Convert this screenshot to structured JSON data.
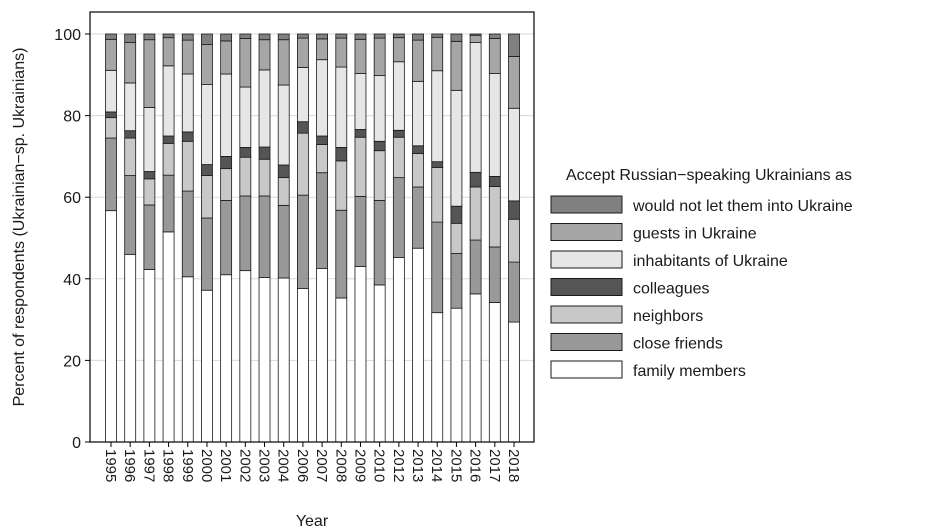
{
  "chart_data": {
    "type": "bar",
    "stacked": true,
    "xlabel": "Year",
    "ylabel": "Percent of respondents (Ukrainian−sp. Ukrainians)",
    "ylim": [
      0,
      100
    ],
    "yticks": [
      0,
      20,
      40,
      60,
      80,
      100
    ],
    "grid": true,
    "legend_title": "Accept Russian−speaking Ukrainians as",
    "legend_position": "right",
    "categories": [
      "1995",
      "1996",
      "1997",
      "1998",
      "1999",
      "2000",
      "2001",
      "2002",
      "2003",
      "2004",
      "2006",
      "2007",
      "2008",
      "2009",
      "2010",
      "2012",
      "2013",
      "2014",
      "2015",
      "2016",
      "2017",
      "2018"
    ],
    "series": [
      {
        "name": "family members",
        "color": "#ffffff",
        "values": [
          56.7,
          46.0,
          42.3,
          51.5,
          40.5,
          37.2,
          41.0,
          42.0,
          40.3,
          40.2,
          37.6,
          42.5,
          35.3,
          43.0,
          38.5,
          45.2,
          47.5,
          31.7,
          32.8,
          36.3,
          34.2,
          29.4
        ]
      },
      {
        "name": "close friends",
        "color": "#999999",
        "values": [
          17.8,
          19.3,
          15.8,
          13.9,
          21.0,
          17.7,
          18.2,
          18.3,
          20.0,
          17.8,
          22.9,
          23.5,
          21.5,
          17.2,
          20.7,
          19.6,
          15.0,
          22.2,
          13.4,
          13.2,
          13.6,
          14.7
        ]
      },
      {
        "name": "neighbors",
        "color": "#c8c8c8",
        "values": [
          5.0,
          9.2,
          6.4,
          7.8,
          12.2,
          10.4,
          7.8,
          9.5,
          9.0,
          6.8,
          15.2,
          6.9,
          12.1,
          14.5,
          12.2,
          9.9,
          8.2,
          13.4,
          7.4,
          13.0,
          14.8,
          10.5
        ]
      },
      {
        "name": "colleagues",
        "color": "#555555",
        "values": [
          1.4,
          1.8,
          1.8,
          1.8,
          2.3,
          2.7,
          3.0,
          2.4,
          3.0,
          3.1,
          2.8,
          2.1,
          3.3,
          1.9,
          2.3,
          1.7,
          1.9,
          1.4,
          4.2,
          3.6,
          2.5,
          4.5
        ]
      },
      {
        "name": "inhabitants of Ukraine",
        "color": "#e6e6e6",
        "values": [
          10.2,
          11.7,
          15.7,
          17.2,
          14.2,
          19.6,
          20.2,
          14.8,
          18.9,
          19.6,
          13.3,
          18.7,
          19.7,
          13.7,
          16.1,
          16.8,
          15.8,
          22.3,
          28.4,
          31.8,
          25.2,
          22.7
        ]
      },
      {
        "name": "guests in Ukraine",
        "color": "#a6a6a6",
        "values": [
          7.6,
          9.9,
          16.6,
          6.9,
          8.3,
          9.8,
          8.1,
          11.9,
          7.4,
          11.1,
          7.2,
          5.1,
          7.1,
          8.4,
          9.2,
          5.9,
          10.1,
          8.2,
          12.0,
          1.8,
          8.6,
          12.7
        ]
      },
      {
        "name": "would not let them into Ukraine",
        "color": "#808080",
        "values": [
          1.3,
          2.1,
          1.4,
          0.9,
          1.5,
          2.6,
          1.7,
          1.1,
          1.4,
          1.4,
          1.0,
          1.2,
          1.0,
          1.3,
          1.0,
          0.9,
          1.5,
          0.8,
          1.8,
          0.3,
          1.1,
          5.5
        ]
      }
    ]
  }
}
